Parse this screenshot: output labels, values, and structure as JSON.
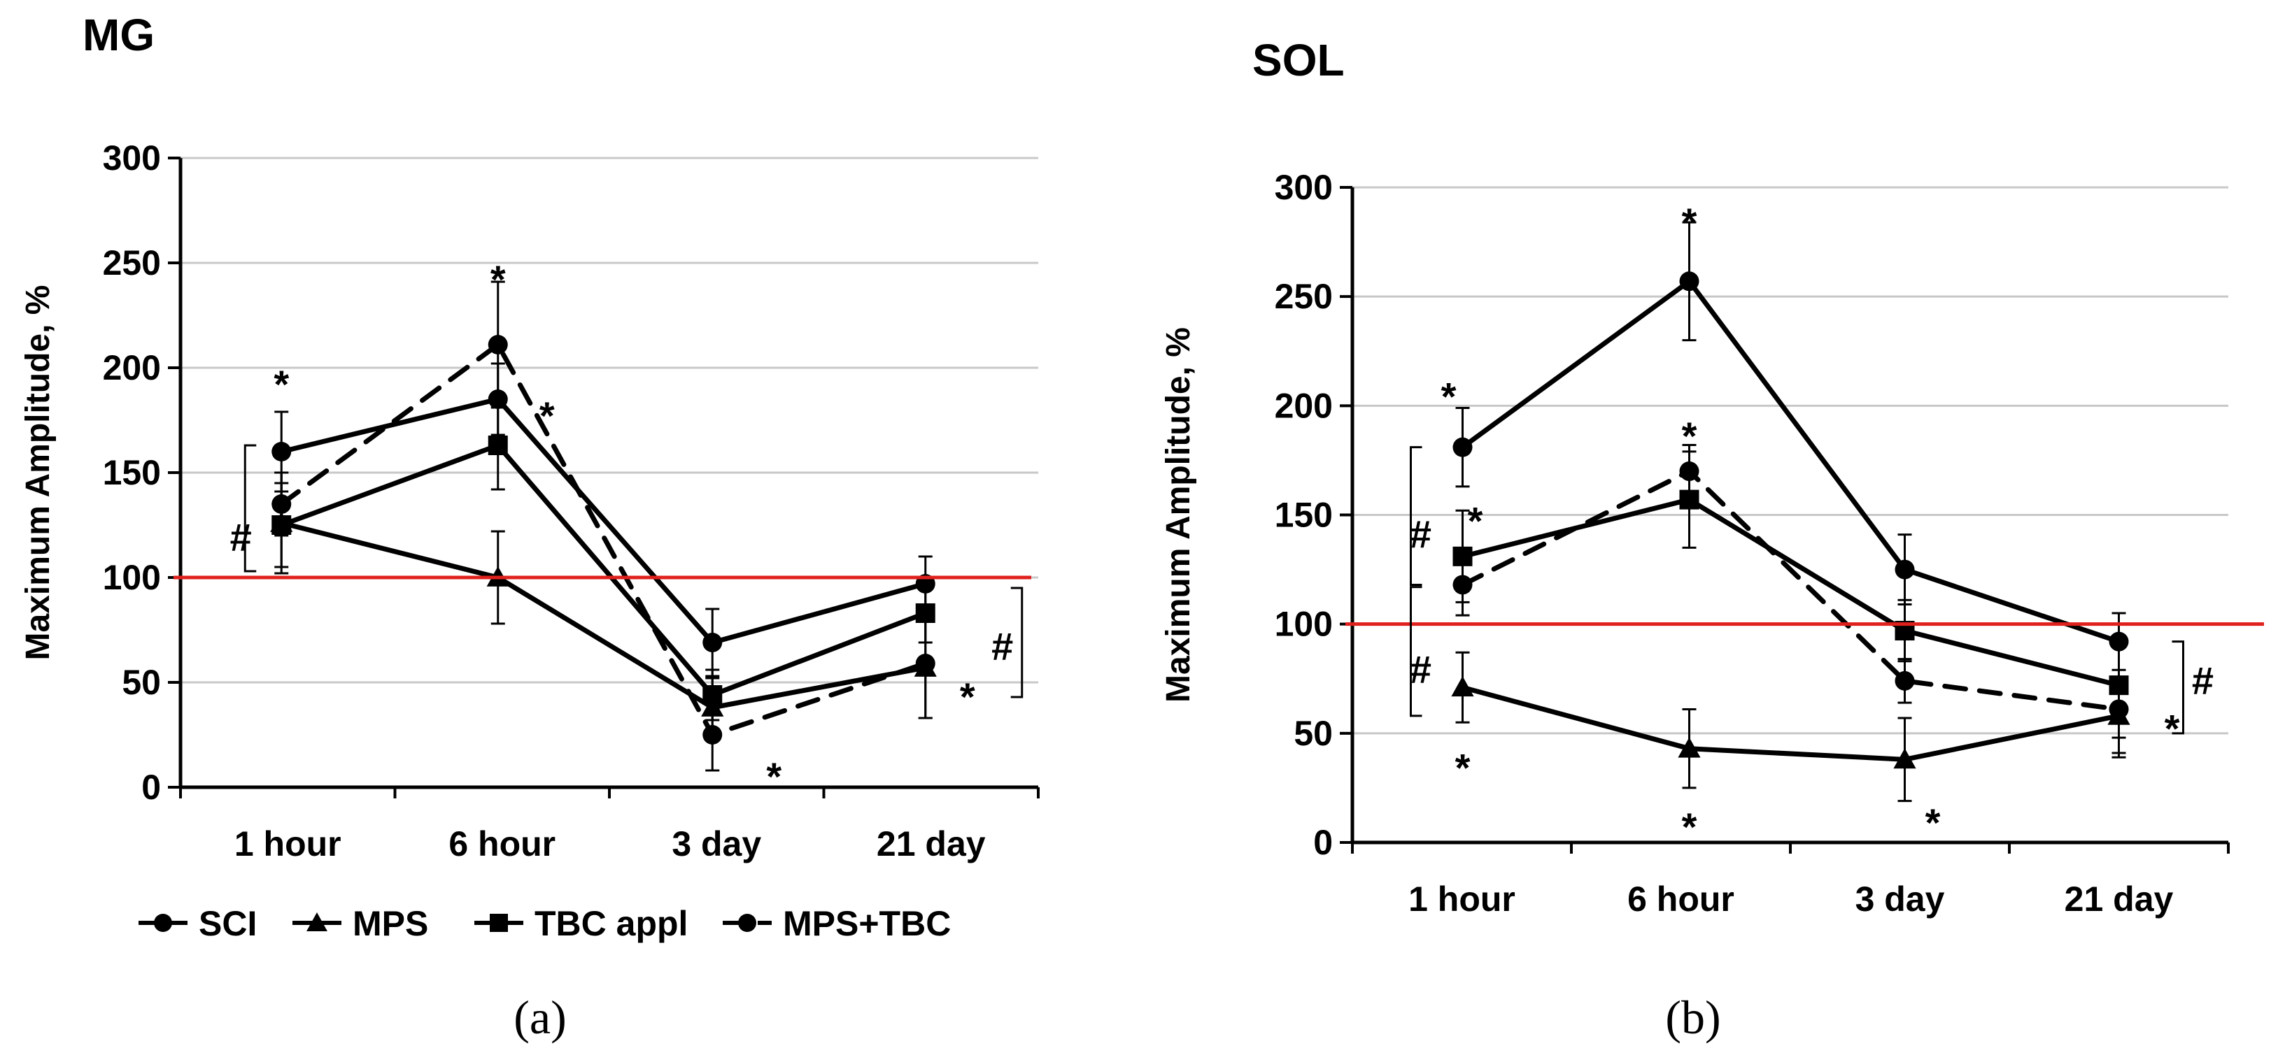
{
  "legend": [
    {
      "label": "SCI",
      "marker": "circle",
      "dashed": false
    },
    {
      "label": "MPS",
      "marker": "triangle",
      "dashed": false
    },
    {
      "label": "TBC appl",
      "marker": "square",
      "dashed": false
    },
    {
      "label": "MPS+TBC",
      "marker": "circle",
      "dashed": true
    }
  ],
  "colors": {
    "lines": "#000000",
    "reference": "#e0201c",
    "grid": "#c8c8c8"
  },
  "chart_data": [
    {
      "type": "line",
      "panel": "(a)",
      "title": "MG",
      "xlabel": "",
      "ylabel": "Maximum Amplitude, %",
      "categories": [
        "1 hour",
        "6 hour",
        "3 day",
        "21 day"
      ],
      "ylim": [
        0,
        300
      ],
      "yticks": [
        0,
        50,
        100,
        150,
        200,
        250,
        300
      ],
      "grid": true,
      "reference_line": 100,
      "series": [
        {
          "name": "SCI",
          "marker": "circle",
          "dashed": false,
          "values": [
            160,
            185,
            69,
            97
          ],
          "errors": [
            19,
            17,
            16,
            13
          ]
        },
        {
          "name": "MPS",
          "marker": "triangle",
          "dashed": false,
          "values": [
            126,
            100,
            38,
            57
          ],
          "errors": [
            24,
            22,
            14,
            24
          ]
        },
        {
          "name": "TBC appl",
          "marker": "square",
          "dashed": false,
          "values": [
            125,
            163,
            44,
            83
          ],
          "errors": [
            20,
            21,
            12,
            14
          ]
        },
        {
          "name": "MPS+TBC",
          "marker": "circle",
          "dashed": true,
          "values": [
            135,
            211,
            25,
            59
          ],
          "errors": [
            15,
            30,
            17,
            26
          ]
        }
      ],
      "annotations": [
        {
          "text": "*",
          "x": "1 hour",
          "y": 193
        },
        {
          "text": "*",
          "x": "6 hour",
          "y": 243
        },
        {
          "text": "*",
          "x": "6 hour",
          "y": 178
        },
        {
          "text": "*",
          "x": "3 day",
          "y": 6
        },
        {
          "text": "*",
          "x": "21 day",
          "y": 44
        },
        {
          "text": "#",
          "x": "1 hour",
          "y": 120
        },
        {
          "text": "#",
          "x": "21 day",
          "y": 68
        }
      ]
    },
    {
      "type": "line",
      "panel": "(b)",
      "title": "SOL",
      "xlabel": "",
      "ylabel": "Maximum Amplitude, %",
      "categories": [
        "1 hour",
        "6 hour",
        "3 day",
        "21 day"
      ],
      "ylim": [
        0,
        300
      ],
      "yticks": [
        0,
        50,
        100,
        150,
        200,
        250,
        300
      ],
      "grid": true,
      "reference_line": 100,
      "series": [
        {
          "name": "SCI",
          "marker": "circle",
          "dashed": false,
          "values": [
            181,
            257,
            125,
            92
          ],
          "errors": [
            18,
            27,
            16,
            13
          ]
        },
        {
          "name": "MPS",
          "marker": "triangle",
          "dashed": false,
          "values": [
            71,
            43,
            38,
            58
          ],
          "errors": [
            16,
            18,
            19,
            17
          ]
        },
        {
          "name": "TBC appl",
          "marker": "square",
          "dashed": false,
          "values": [
            131,
            157,
            97,
            72
          ],
          "errors": [
            21,
            22,
            14,
            33
          ]
        },
        {
          "name": "MPS+TBC",
          "marker": "circle",
          "dashed": true,
          "values": [
            118,
            170,
            74,
            61
          ],
          "errors": [
            14,
            12,
            10,
            13
          ]
        }
      ],
      "annotations": [
        {
          "text": "*",
          "x": "1 hour",
          "y": 205
        },
        {
          "text": "*",
          "x": "1 hour",
          "y": 148
        },
        {
          "text": "*",
          "x": "1 hour",
          "y": 35
        },
        {
          "text": "*",
          "x": "6 hour",
          "y": 285
        },
        {
          "text": "*",
          "x": "6 hour",
          "y": 187
        },
        {
          "text": "*",
          "x": "6 hour",
          "y": 8
        },
        {
          "text": "*",
          "x": "3 day",
          "y": 10
        },
        {
          "text": "*",
          "x": "21 day",
          "y": 53
        },
        {
          "text": "#",
          "x": "1 hour",
          "y": 142
        },
        {
          "text": "#",
          "x": "1 hour",
          "y": 80
        },
        {
          "text": "#",
          "x": "21 day",
          "y": 75
        }
      ]
    }
  ]
}
